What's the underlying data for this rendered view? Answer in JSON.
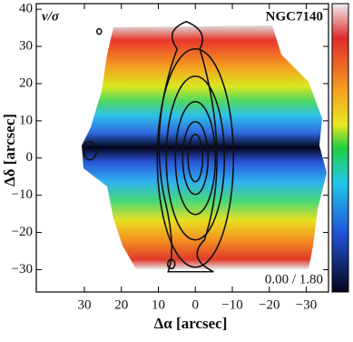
{
  "chart_data": {
    "type": "map",
    "label": "v/σ",
    "title": "NGC7140",
    "scale_label": "0.00 / 1.80",
    "xlabel": "Δα [arcsec]",
    "ylabel": "Δδ [arcsec]",
    "xlim": [
      43,
      -36
    ],
    "ylim": [
      -36,
      41.5
    ],
    "xticks": [
      30,
      20,
      10,
      0,
      {
        "value": -10,
        "label": "−10"
      },
      {
        "value": -20,
        "label": "−20"
      },
      {
        "value": -30,
        "label": "−30"
      }
    ],
    "yticks": [
      {
        "value": -30,
        "label": "−30"
      },
      {
        "value": -20,
        "label": "−20"
      },
      {
        "value": -10,
        "label": "−10"
      },
      0,
      10,
      20,
      30,
      40
    ]
  }
}
